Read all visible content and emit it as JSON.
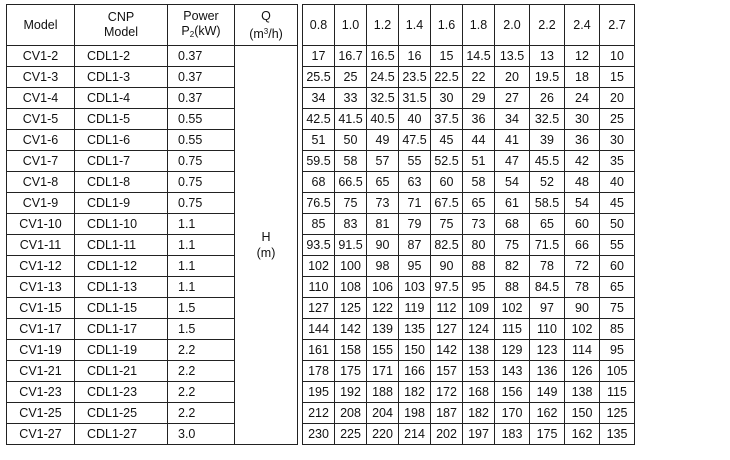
{
  "headers": {
    "model": "Model",
    "cnp_line1": "CNP",
    "cnp_line2": "Model",
    "power_line1": "Power",
    "power_p": "P",
    "power_sub": "2",
    "power_unit": "(kW)",
    "q_line1": "Q",
    "q_unit_open": "(m",
    "q_unit_sup": "3",
    "q_unit_close": "/h)"
  },
  "h_label": "H",
  "h_unit": "(m)",
  "flows": [
    "0.8",
    "1.0",
    "1.2",
    "1.4",
    "1.6",
    "1.8",
    "2.0",
    "2.2",
    "2.4",
    "2.7"
  ],
  "rows": [
    {
      "model": "CV1-2",
      "cnp": "CDL1-2",
      "power": "0.37",
      "h": [
        "17",
        "16.7",
        "16.5",
        "16",
        "15",
        "14.5",
        "13.5",
        "13",
        "12",
        "10"
      ]
    },
    {
      "model": "CV1-3",
      "cnp": "CDL1-3",
      "power": "0.37",
      "h": [
        "25.5",
        "25",
        "24.5",
        "23.5",
        "22.5",
        "22",
        "20",
        "19.5",
        "18",
        "15"
      ]
    },
    {
      "model": "CV1-4",
      "cnp": "CDL1-4",
      "power": "0.37",
      "h": [
        "34",
        "33",
        "32.5",
        "31.5",
        "30",
        "29",
        "27",
        "26",
        "24",
        "20"
      ]
    },
    {
      "model": "CV1-5",
      "cnp": "CDL1-5",
      "power": "0.55",
      "h": [
        "42.5",
        "41.5",
        "40.5",
        "40",
        "37.5",
        "36",
        "34",
        "32.5",
        "30",
        "25"
      ]
    },
    {
      "model": "CV1-6",
      "cnp": "CDL1-6",
      "power": "0.55",
      "h": [
        "51",
        "50",
        "49",
        "47.5",
        "45",
        "44",
        "41",
        "39",
        "36",
        "30"
      ]
    },
    {
      "model": "CV1-7",
      "cnp": "CDL1-7",
      "power": "0.75",
      "h": [
        "59.5",
        "58",
        "57",
        "55",
        "52.5",
        "51",
        "47",
        "45.5",
        "42",
        "35"
      ]
    },
    {
      "model": "CV1-8",
      "cnp": "CDL1-8",
      "power": "0.75",
      "h": [
        "68",
        "66.5",
        "65",
        "63",
        "60",
        "58",
        "54",
        "52",
        "48",
        "40"
      ]
    },
    {
      "model": "CV1-9",
      "cnp": "CDL1-9",
      "power": "0.75",
      "h": [
        "76.5",
        "75",
        "73",
        "71",
        "67.5",
        "65",
        "61",
        "58.5",
        "54",
        "45"
      ]
    },
    {
      "model": "CV1-10",
      "cnp": "CDL1-10",
      "power": "1.1",
      "h": [
        "85",
        "83",
        "81",
        "79",
        "75",
        "73",
        "68",
        "65",
        "60",
        "50"
      ]
    },
    {
      "model": "CV1-11",
      "cnp": "CDL1-11",
      "power": "1.1",
      "h": [
        "93.5",
        "91.5",
        "90",
        "87",
        "82.5",
        "80",
        "75",
        "71.5",
        "66",
        "55"
      ]
    },
    {
      "model": "CV1-12",
      "cnp": "CDL1-12",
      "power": "1.1",
      "h": [
        "102",
        "100",
        "98",
        "95",
        "90",
        "88",
        "82",
        "78",
        "72",
        "60"
      ]
    },
    {
      "model": "CV1-13",
      "cnp": "CDL1-13",
      "power": "1.1",
      "h": [
        "110",
        "108",
        "106",
        "103",
        "97.5",
        "95",
        "88",
        "84.5",
        "78",
        "65"
      ]
    },
    {
      "model": "CV1-15",
      "cnp": "CDL1-15",
      "power": "1.5",
      "h": [
        "127",
        "125",
        "122",
        "119",
        "112",
        "109",
        "102",
        "97",
        "90",
        "75"
      ]
    },
    {
      "model": "CV1-17",
      "cnp": "CDL1-17",
      "power": "1.5",
      "h": [
        "144",
        "142",
        "139",
        "135",
        "127",
        "124",
        "115",
        "110",
        "102",
        "85"
      ]
    },
    {
      "model": "CV1-19",
      "cnp": "CDL1-19",
      "power": "2.2",
      "h": [
        "161",
        "158",
        "155",
        "150",
        "142",
        "138",
        "129",
        "123",
        "114",
        "95"
      ]
    },
    {
      "model": "CV1-21",
      "cnp": "CDL1-21",
      "power": "2.2",
      "h": [
        "178",
        "175",
        "171",
        "166",
        "157",
        "153",
        "143",
        "136",
        "126",
        "105"
      ]
    },
    {
      "model": "CV1-23",
      "cnp": "CDL1-23",
      "power": "2.2",
      "h": [
        "195",
        "192",
        "188",
        "182",
        "172",
        "168",
        "156",
        "149",
        "138",
        "115"
      ]
    },
    {
      "model": "CV1-25",
      "cnp": "CDL1-25",
      "power": "2.2",
      "h": [
        "212",
        "208",
        "204",
        "198",
        "187",
        "182",
        "170",
        "162",
        "150",
        "125"
      ]
    },
    {
      "model": "CV1-27",
      "cnp": "CDL1-27",
      "power": "3.0",
      "h": [
        "230",
        "225",
        "220",
        "214",
        "202",
        "197",
        "183",
        "175",
        "162",
        "135"
      ]
    }
  ]
}
